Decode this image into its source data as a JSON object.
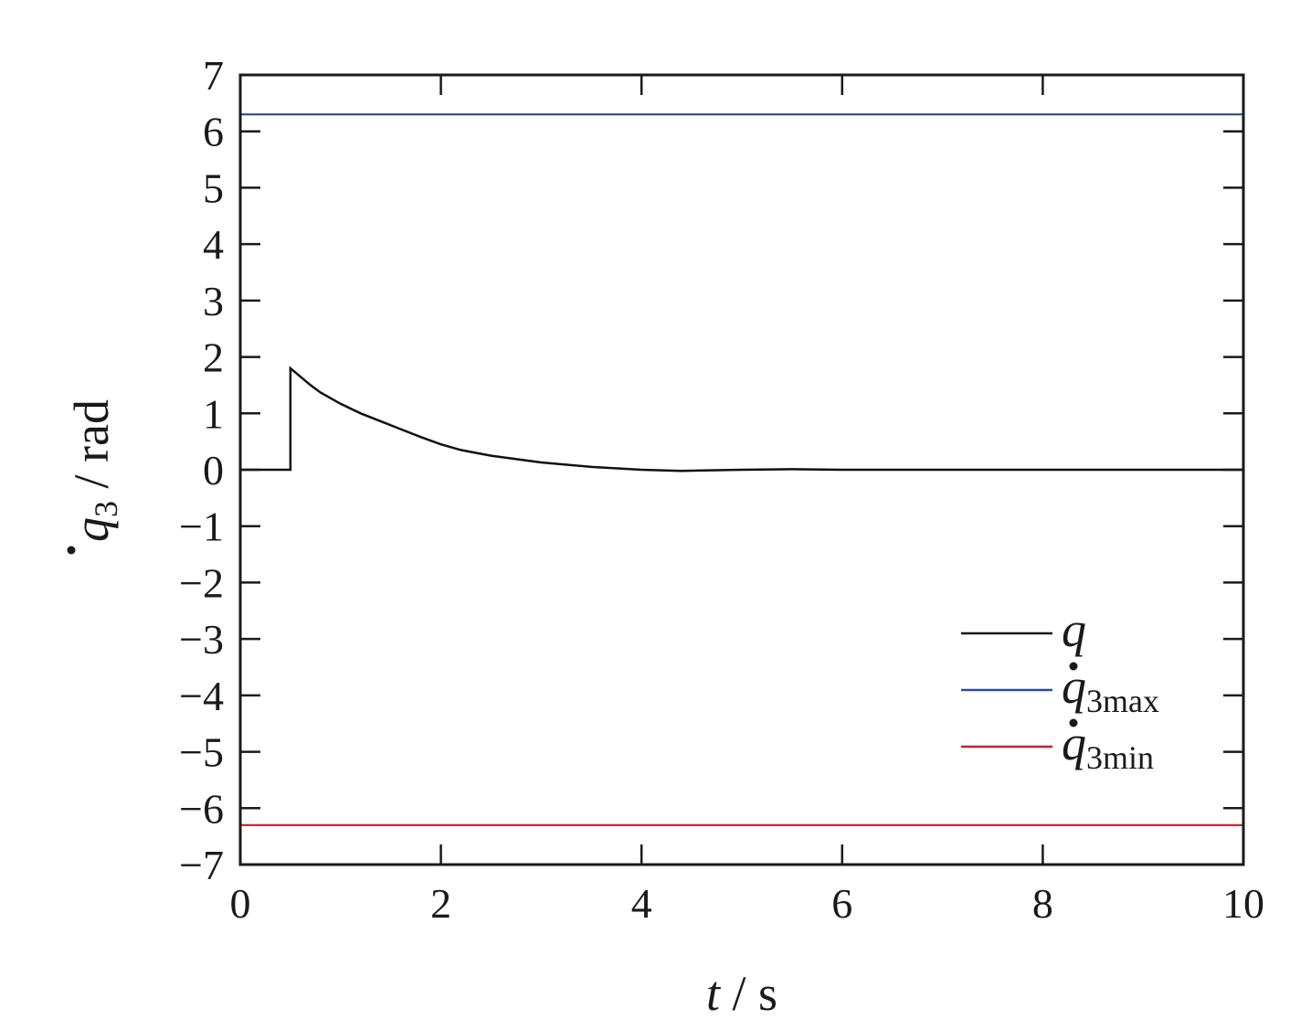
{
  "chart_data": {
    "type": "line",
    "xlabel": {
      "var": "t",
      "unit": " / s"
    },
    "ylabel": {
      "var": "q",
      "sub": "3",
      "unit": " / rad"
    },
    "xlim": [
      0,
      10
    ],
    "ylim": [
      -7,
      7
    ],
    "x_ticks": [
      "0",
      "2",
      "4",
      "6",
      "8",
      "10"
    ],
    "y_ticks": [
      "7",
      "6",
      "5",
      "4",
      "3",
      "2",
      "1",
      "0",
      "−1",
      "−2",
      "−3",
      "−4",
      "−5",
      "−6",
      "−7"
    ],
    "grid": false,
    "legend_position": "bottom-right",
    "series": [
      {
        "name": "q",
        "color": "#111111",
        "x": [
          0,
          0.5,
          0.5,
          0.6,
          0.7,
          0.8,
          1.0,
          1.2,
          1.4,
          1.6,
          1.8,
          2.0,
          2.2,
          2.5,
          3.0,
          3.5,
          4.0,
          4.4,
          5.0,
          5.5,
          6.0,
          7.0,
          8.0,
          9.0,
          10.0
        ],
        "y": [
          0,
          0,
          1.8,
          1.65,
          1.5,
          1.37,
          1.17,
          1.0,
          0.86,
          0.72,
          0.58,
          0.45,
          0.35,
          0.25,
          0.13,
          0.05,
          0.0,
          -0.02,
          0.0,
          0.01,
          0.0,
          0.0,
          0.0,
          0.0,
          0.0
        ]
      },
      {
        "name": "q",
        "sub": "3max",
        "dot": true,
        "color": "#2a4a9c",
        "x": [
          0,
          10
        ],
        "y": [
          6.3,
          6.3
        ]
      },
      {
        "name": "q",
        "sub": "3min",
        "dot": true,
        "color": "#c8202a",
        "x": [
          0,
          10
        ],
        "y": [
          -6.3,
          -6.3
        ]
      }
    ]
  }
}
